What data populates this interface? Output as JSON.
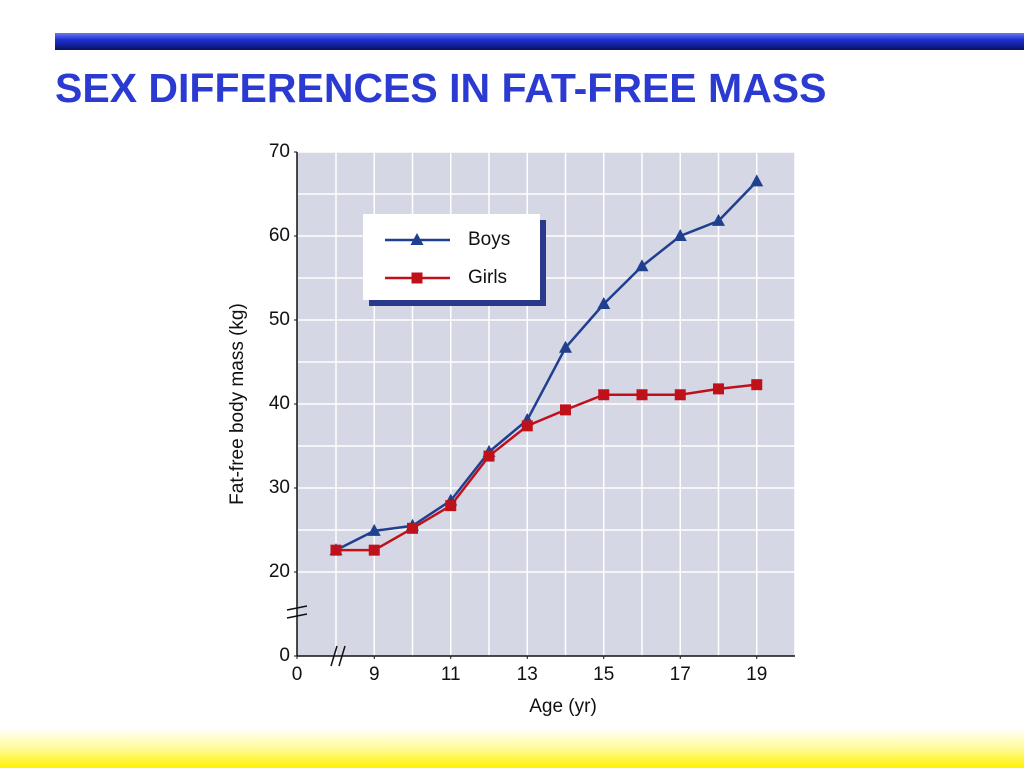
{
  "chart_data": {
    "type": "line",
    "title": "SEX DIFFERENCES IN FAT-FREE MASS",
    "xlabel": "Age (yr)",
    "ylabel": "Fat-free body mass (kg)",
    "x": [
      8,
      9,
      10,
      11,
      12,
      13,
      14,
      15,
      16,
      17,
      18,
      19
    ],
    "series": [
      {
        "name": "Boys",
        "color": "#1f3f8f",
        "marker": "triangle",
        "values": [
          22.6,
          24.9,
          25.5,
          28.5,
          34.3,
          38.1,
          46.7,
          51.9,
          56.4,
          60,
          61.8,
          66.5
        ]
      },
      {
        "name": "Girls",
        "color": "#c0101a",
        "marker": "square",
        "values": [
          22.6,
          22.6,
          25.2,
          27.9,
          33.8,
          37.4,
          39.3,
          41.1,
          41.1,
          41.1,
          41.8,
          42.3
        ]
      }
    ],
    "xlim": [
      0,
      20
    ],
    "ylim": [
      0,
      70
    ],
    "xticks": [
      0,
      9,
      11,
      13,
      15,
      17,
      19
    ],
    "yticks": [
      0,
      20,
      30,
      40,
      50,
      60,
      70
    ],
    "xbreak": [
      0,
      8
    ],
    "ybreak": [
      0,
      20
    ],
    "xgrid": [
      8,
      9,
      10,
      11,
      12,
      13,
      14,
      15,
      16,
      17,
      18,
      19,
      20
    ],
    "ygrid": [
      20,
      25,
      30,
      35,
      40,
      45,
      50,
      55,
      60,
      65,
      70
    ],
    "grid": true,
    "legend": "upper left"
  }
}
